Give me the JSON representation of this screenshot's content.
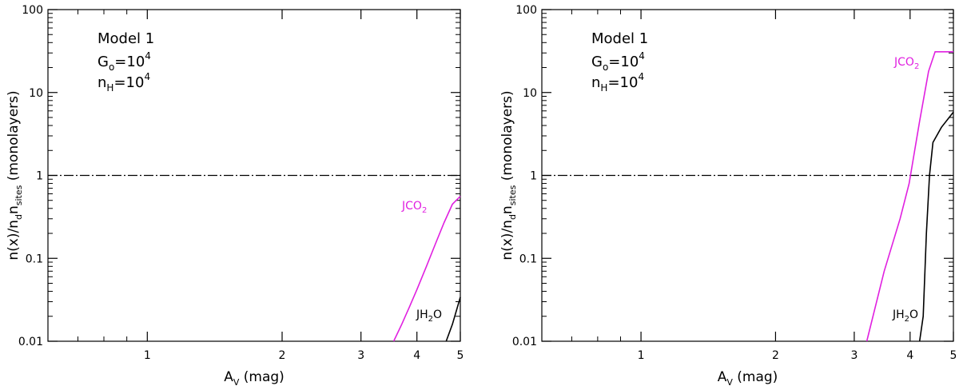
{
  "chart_data": [
    {
      "type": "line",
      "xscale": "log",
      "yscale": "log",
      "xlim": [
        0.6,
        5
      ],
      "ylim": [
        0.01,
        100
      ],
      "xticks": [
        1,
        2,
        3,
        4,
        5
      ],
      "xtick_labels": [
        "1",
        "2",
        "3",
        "4",
        "5"
      ],
      "yticks": [
        0.01,
        0.1,
        1,
        10,
        100
      ],
      "ytick_labels": [
        "0.01",
        "0.1",
        "1",
        "10",
        "100"
      ],
      "xlabel": "A_V (mag)",
      "ylabel": "n(x)/n_d n_sites (monolayers)",
      "annotations": [
        "Model 1",
        "G_o=10^4",
        "n_H=10^4"
      ],
      "reference_line": {
        "y": 1,
        "style": "dash-dot"
      },
      "series": [
        {
          "name": "JCO2",
          "label_text": "JCO",
          "label_sub": "2",
          "color": "#e020e0",
          "x": [
            3.55,
            3.7,
            3.85,
            4.0,
            4.2,
            4.4,
            4.6,
            4.8,
            5.0
          ],
          "y": [
            0.01,
            0.016,
            0.026,
            0.042,
            0.08,
            0.15,
            0.27,
            0.45,
            0.56
          ]
        },
        {
          "name": "JH2O",
          "label_text": "JH",
          "label_sub": "2",
          "label_after": "O",
          "color": "#000000",
          "x": [
            4.65,
            4.8,
            5.0
          ],
          "y": [
            0.01,
            0.016,
            0.034
          ]
        }
      ]
    },
    {
      "type": "line",
      "xscale": "log",
      "yscale": "log",
      "xlim": [
        0.6,
        5
      ],
      "ylim": [
        0.01,
        100
      ],
      "xticks": [
        1,
        2,
        3,
        4,
        5
      ],
      "xtick_labels": [
        "1",
        "2",
        "3",
        "4",
        "5"
      ],
      "yticks": [
        0.01,
        0.1,
        1,
        10,
        100
      ],
      "ytick_labels": [
        "0.01",
        "0.1",
        "1",
        "10",
        "100"
      ],
      "xlabel": "A_V (mag)",
      "ylabel": "n(x)/n_d n_sites (monolayers)",
      "annotations": [
        "Model 1",
        "G_o=10^4",
        "n_H=10^4"
      ],
      "reference_line": {
        "y": 1,
        "style": "dash-dot"
      },
      "series": [
        {
          "name": "JCO2",
          "label_text": "JCO",
          "label_sub": "2",
          "color": "#e020e0",
          "x": [
            3.2,
            3.5,
            3.8,
            3.98,
            4.2,
            4.4,
            4.55,
            5.0
          ],
          "y": [
            0.01,
            0.07,
            0.3,
            0.8,
            4.5,
            18,
            31,
            31
          ]
        },
        {
          "name": "JH2O",
          "label_text": "JH",
          "label_sub": "2",
          "label_after": "O",
          "color": "#000000",
          "x": [
            4.2,
            4.28,
            4.35,
            4.42,
            4.5,
            4.7,
            5.0
          ],
          "y": [
            0.01,
            0.02,
            0.2,
            1.0,
            2.5,
            3.8,
            5.8
          ]
        }
      ]
    }
  ]
}
